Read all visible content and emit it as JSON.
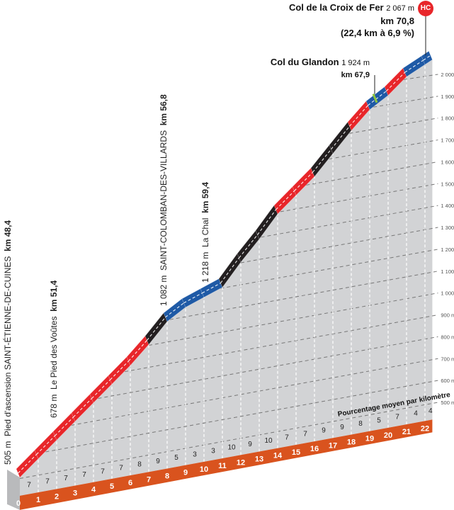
{
  "chart_data": {
    "type": "area",
    "title": "",
    "x_unit": "km",
    "km_labels": [
      "0",
      "1",
      "2",
      "3",
      "4",
      "5",
      "6",
      "7",
      "8",
      "9",
      "10",
      "11",
      "12",
      "13",
      "14",
      "15",
      "16",
      "17",
      "18",
      "19",
      "20",
      "21",
      "22"
    ],
    "percent_per_km": [
      7,
      7,
      7,
      7,
      7,
      7,
      8,
      9,
      5,
      3,
      3,
      10,
      9,
      10,
      7,
      7,
      9,
      9,
      8,
      5,
      7,
      4,
      4
    ],
    "climb_length_km": 22.4,
    "start_elevation_m": 505,
    "summit_elevation_m": 2067,
    "y_ticks": [
      "500 m",
      "600 m",
      "700 m",
      "800 m",
      "900 m",
      "1 000 m",
      "1 100 m",
      "1 200 m",
      "1 300 m",
      "1 400 m",
      "1 500 m",
      "1 600 m",
      "1 700 m",
      "1 800 m",
      "1 900 m",
      "2 000 m"
    ],
    "y_tick_values": [
      500,
      600,
      700,
      800,
      900,
      1000,
      1100,
      1200,
      1300,
      1400,
      1500,
      1600,
      1700,
      1800,
      1900,
      2000
    ],
    "grid": true,
    "caption": "Pourcentage moyen par kilomètre",
    "colors": {
      "low": "#1f5aa6",
      "medium": "#e8262a",
      "high": "#231f20",
      "base": "#d9531e",
      "face": "#d2d3d5",
      "summit_pass": "#8dc63f"
    }
  },
  "annotations": {
    "start": {
      "elev": "505 m",
      "name": "Pied d'ascension  SAINT-ÉTIENNE-DE-CUINES",
      "km": "km 48,4"
    },
    "voutes": {
      "elev": "678 m",
      "name": "Le Pied des Voûtes",
      "km": "km 51,4"
    },
    "colomban": {
      "elev": "1 082 m",
      "name": "SAINT-COLOMBAN-DES-VILLARDS",
      "km": "km 56,8"
    },
    "chal": {
      "elev": "1 218 m",
      "name": "La Chal",
      "km": "km 59,4"
    },
    "glandon": {
      "name": "Col du Glandon",
      "elev": "1 924 m",
      "km": "km 67,9"
    },
    "croix": {
      "name": "Col de la Croix de Fer",
      "elev": "2 067 m",
      "km": "km 70,8",
      "summary": "(22,4 km à 6,9 %)",
      "category": "HC"
    }
  }
}
